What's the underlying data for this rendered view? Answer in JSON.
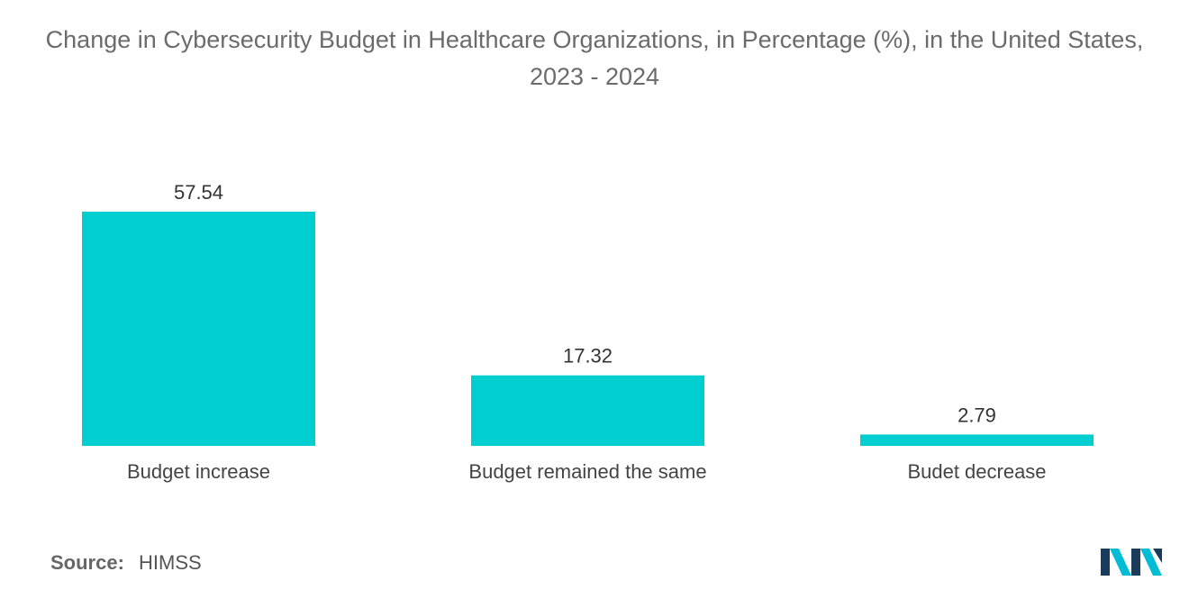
{
  "chart_data": {
    "type": "bar",
    "title": "Change in Cybersecurity Budget in Healthcare Organizations, in Percentage (%), in the United States, 2023 - 2024",
    "categories": [
      "Budget increase",
      "Budget remained the same",
      "Budet decrease"
    ],
    "values": [
      57.54,
      17.32,
      2.79
    ],
    "value_labels": [
      "57.54",
      "17.32",
      "2.79"
    ],
    "xlabel": "",
    "ylabel": "",
    "ylim": [
      0,
      57.54
    ],
    "grid": false,
    "legend": "none",
    "bar_color": "#00ced1"
  },
  "source": {
    "label": "Source:",
    "value": "HIMSS"
  },
  "logo": {
    "icon": "mordor-intelligence-logo-icon",
    "colors": [
      "#1a3b5c",
      "#00bcd4"
    ]
  }
}
